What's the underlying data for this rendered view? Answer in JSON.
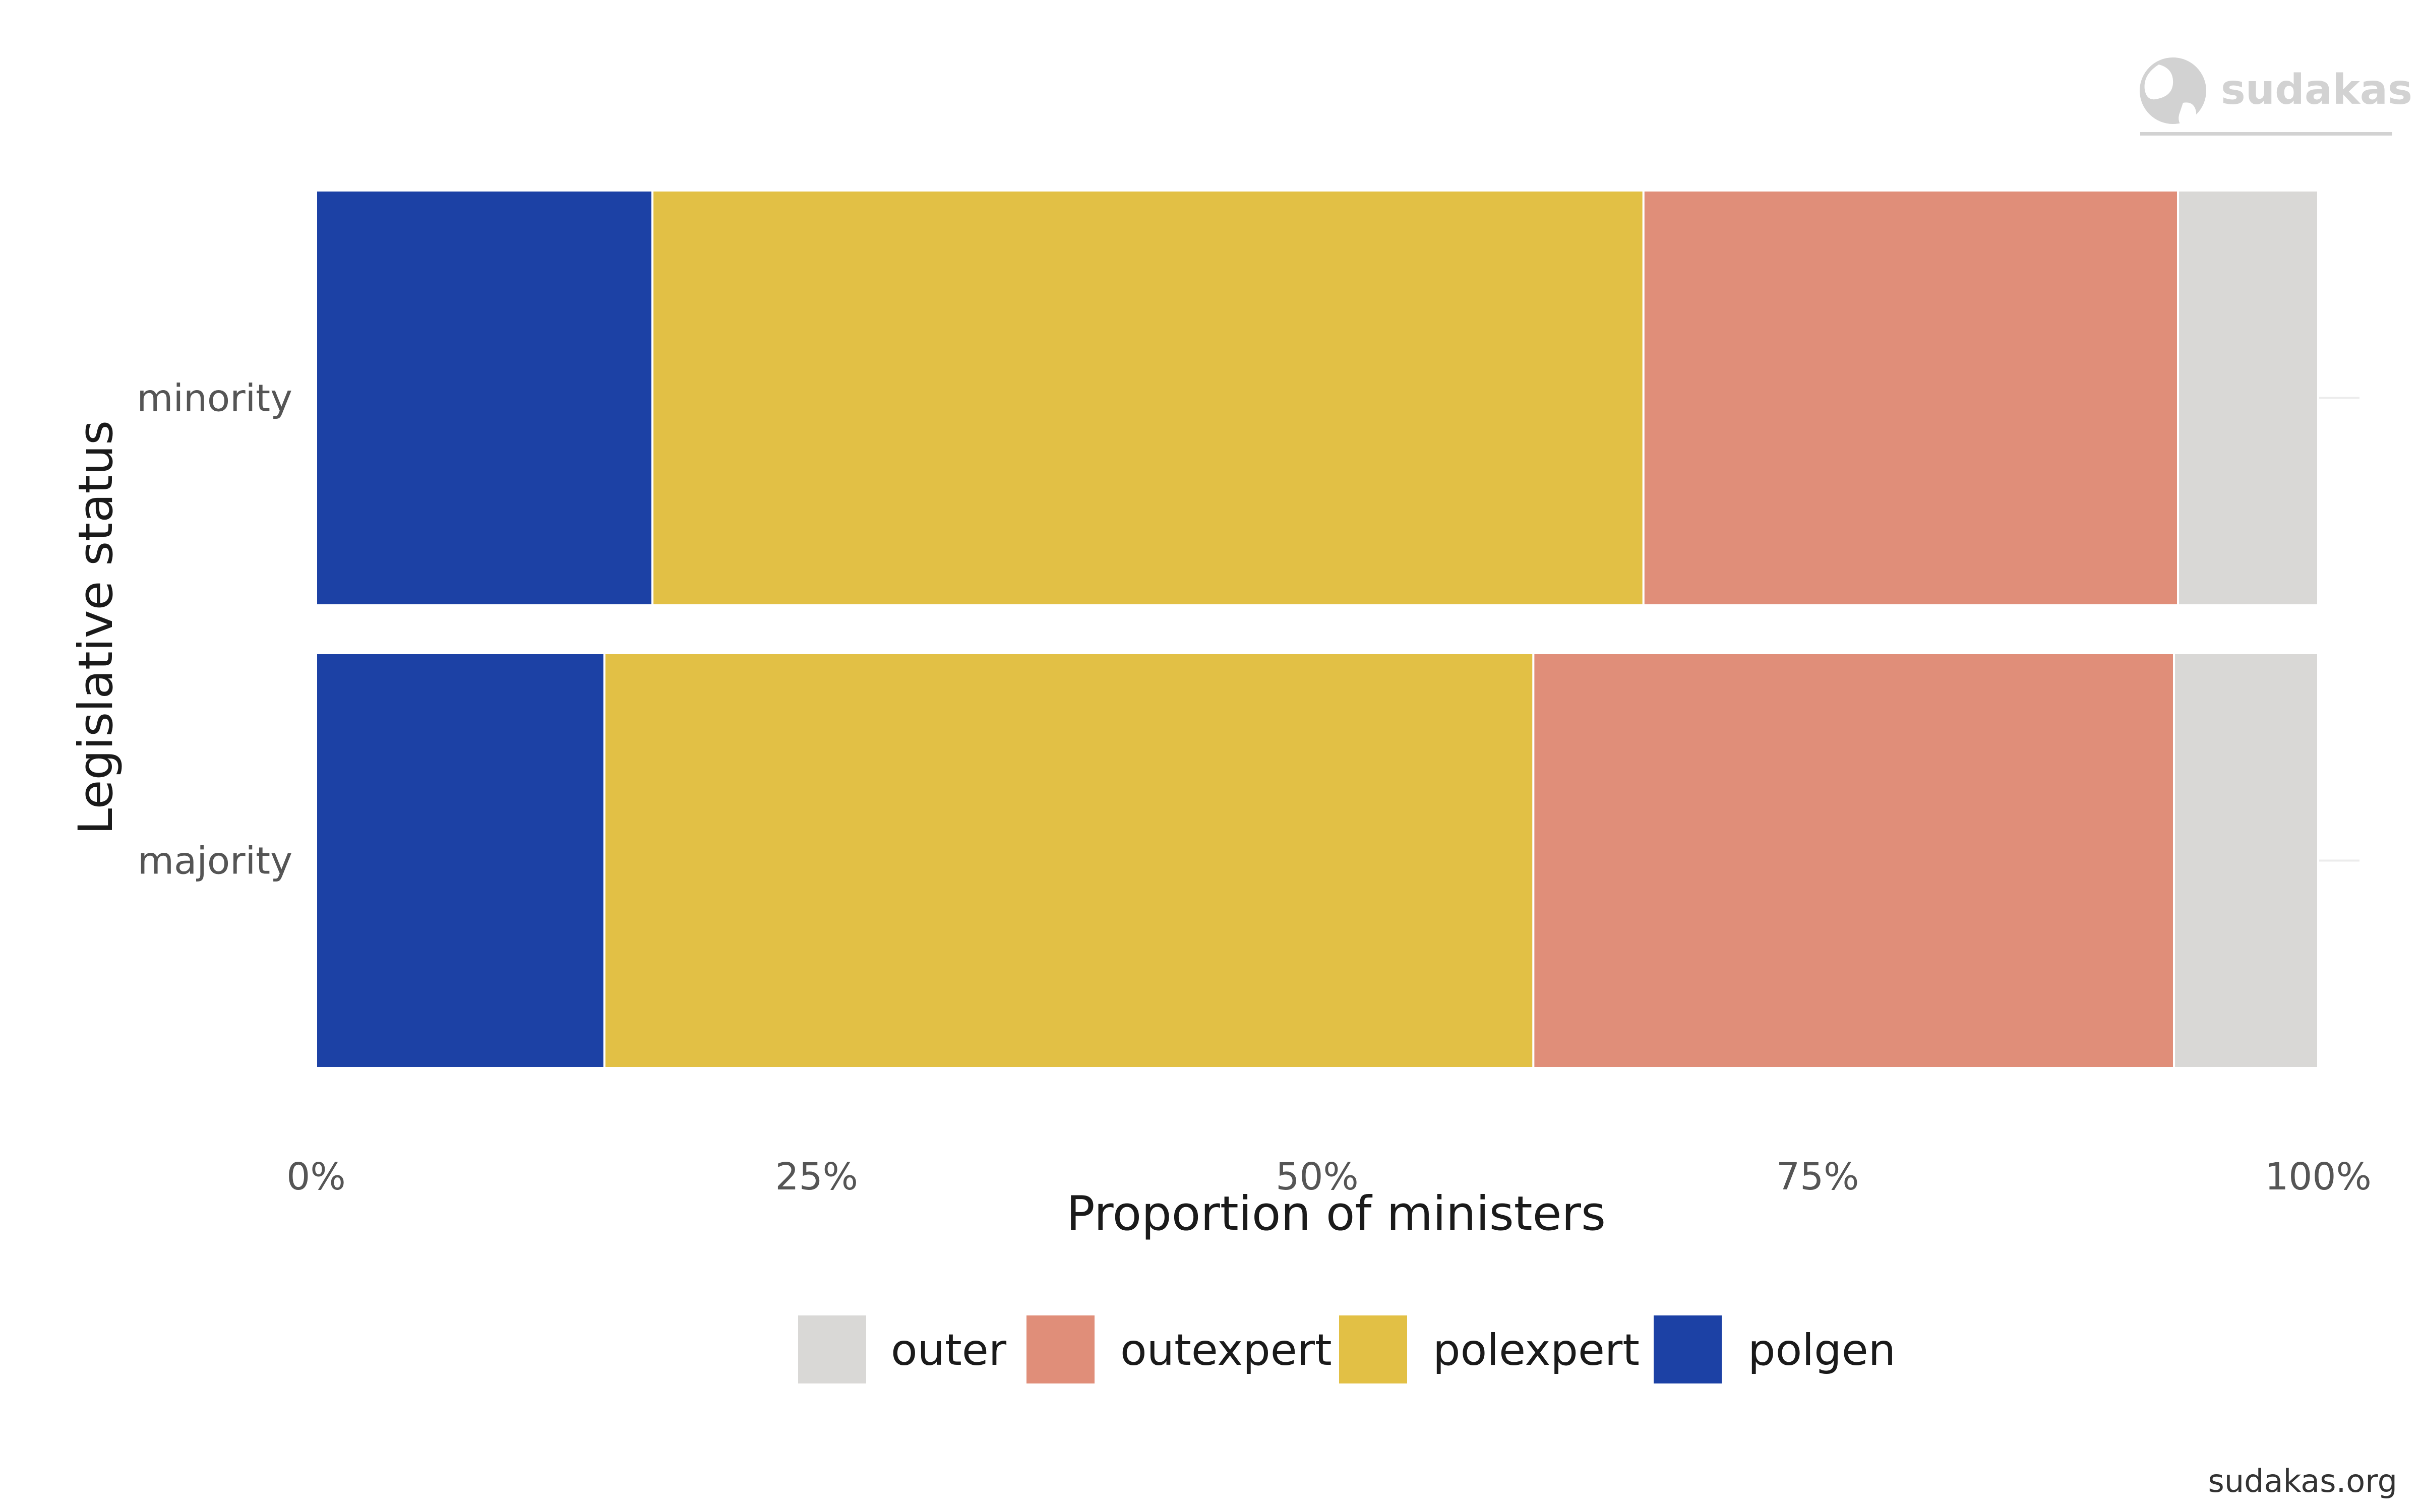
{
  "brand": {
    "name": "sudakas",
    "footer": "sudakas.org"
  },
  "colors": {
    "outer": "#D9D8D6",
    "outexpert": "#E08E79",
    "polexpert": "#E2C045",
    "polgen": "#1C41A5"
  },
  "chart_data": {
    "type": "bar",
    "orientation": "horizontal",
    "stacked": true,
    "xlabel": "Proportion of ministers",
    "ylabel": "Legislative status",
    "xlim": [
      0,
      100
    ],
    "x_ticks": [
      "0%",
      "25%",
      "50%",
      "75%",
      "100%"
    ],
    "categories": [
      "minority",
      "majority"
    ],
    "series": [
      {
        "name": "polgen",
        "values": [
          16.8,
          14.4
        ]
      },
      {
        "name": "polexpert",
        "values": [
          49.5,
          46.4
        ]
      },
      {
        "name": "outexpert",
        "values": [
          26.7,
          32.0
        ]
      },
      {
        "name": "outer",
        "values": [
          7.0,
          7.2
        ]
      }
    ],
    "legend": {
      "position": "bottom",
      "items": [
        "outer",
        "outexpert",
        "polexpert",
        "polgen"
      ]
    },
    "grid": true
  }
}
